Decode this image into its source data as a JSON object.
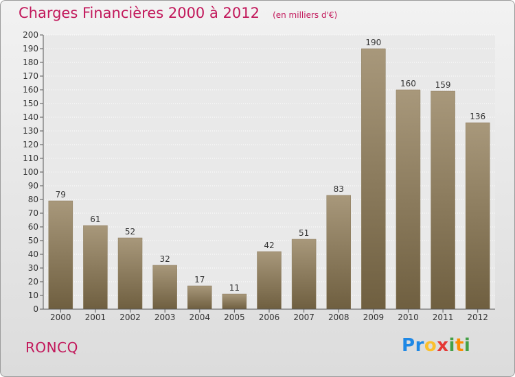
{
  "header": {
    "title": "Charges Financières 2000 à 2012",
    "subtitle": "(en milliers d'€)"
  },
  "footer": {
    "place": "RONCQ",
    "logo_letters": [
      {
        "ch": "P",
        "color": "#1e88e5"
      },
      {
        "ch": "r",
        "color": "#1e88e5"
      },
      {
        "ch": "o",
        "color": "#fbc02d"
      },
      {
        "ch": "x",
        "color": "#e53935"
      },
      {
        "ch": "i",
        "color": "#43a047"
      },
      {
        "ch": "t",
        "color": "#fb8c00"
      },
      {
        "ch": "i",
        "color": "#43a047"
      }
    ]
  },
  "chart_data": {
    "type": "bar",
    "categories": [
      "2000",
      "2001",
      "2002",
      "2003",
      "2004",
      "2005",
      "2006",
      "2007",
      "2008",
      "2009",
      "2010",
      "2011",
      "2012"
    ],
    "values": [
      79,
      61,
      52,
      32,
      17,
      11,
      42,
      51,
      83,
      190,
      160,
      159,
      136
    ],
    "title": "Charges Financières 2000 à 2012",
    "subtitle": "(en milliers d'€)",
    "xlabel": "",
    "ylabel": "",
    "ylim": [
      0,
      200
    ],
    "yticks": [
      0,
      10,
      20,
      30,
      40,
      50,
      60,
      70,
      80,
      90,
      100,
      110,
      120,
      130,
      140,
      150,
      160,
      170,
      180,
      190,
      200
    ],
    "grid": true,
    "data_labels": true,
    "colors": {
      "bar_top": "#a8987b",
      "bar_bottom": "#6f5f40",
      "text": "#333333",
      "axis": "#555555"
    }
  }
}
